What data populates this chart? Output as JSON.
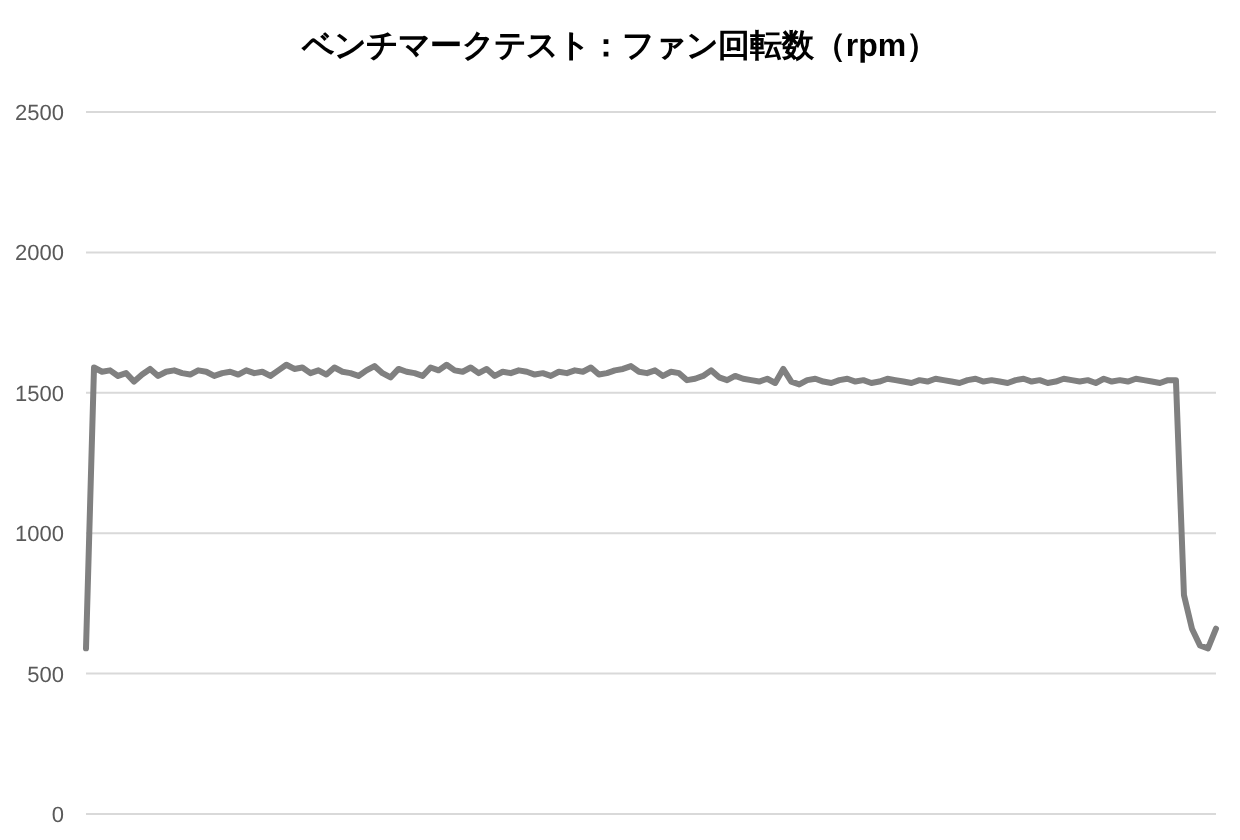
{
  "chart_data": {
    "type": "line",
    "title": "ベンチマークテスト：ファン回転数（rpm）",
    "categories": [
      null,
      null,
      null,
      null,
      null,
      null,
      null,
      null,
      null,
      null,
      null,
      null,
      null,
      null,
      null,
      null,
      null,
      null,
      null,
      null,
      null,
      null,
      null,
      null,
      null,
      null,
      null,
      null,
      null,
      null,
      null,
      null,
      null,
      null,
      null,
      null,
      null,
      null,
      null,
      null,
      null,
      null,
      null,
      null,
      null,
      null,
      null,
      null,
      null,
      null,
      null,
      null,
      null,
      null,
      null,
      null,
      null,
      null,
      null,
      null,
      null,
      null,
      null,
      null,
      null,
      null,
      null,
      null,
      null,
      null,
      null,
      null,
      null,
      null,
      null,
      null,
      null,
      null,
      null,
      null,
      null,
      null,
      null,
      null,
      null,
      null,
      null,
      null,
      null,
      null,
      null,
      null,
      null,
      null,
      null,
      null,
      null,
      null,
      null,
      null,
      null,
      null,
      null,
      null,
      null,
      null,
      null,
      null,
      null,
      null,
      null,
      null,
      null,
      null,
      null,
      null,
      null,
      null,
      null,
      null,
      null,
      null,
      null,
      null,
      null,
      null,
      null,
      null,
      null,
      null,
      null,
      null,
      null,
      null,
      null,
      null,
      null,
      null,
      null,
      null,
      null,
      null
    ],
    "series": [
      {
        "color": "#808080",
        "values": [
          590,
          1590,
          1575,
          1580,
          1560,
          1570,
          1540,
          1565,
          1585,
          1560,
          1575,
          1580,
          1570,
          1565,
          1580,
          1575,
          1560,
          1570,
          1575,
          1565,
          1580,
          1570,
          1575,
          1560,
          1580,
          1600,
          1585,
          1590,
          1570,
          1580,
          1565,
          1590,
          1575,
          1570,
          1560,
          1580,
          1595,
          1570,
          1555,
          1585,
          1575,
          1570,
          1560,
          1590,
          1580,
          1600,
          1580,
          1575,
          1590,
          1570,
          1585,
          1560,
          1575,
          1570,
          1580,
          1575,
          1565,
          1570,
          1560,
          1575,
          1570,
          1580,
          1575,
          1590,
          1565,
          1570,
          1580,
          1585,
          1595,
          1575,
          1570,
          1580,
          1560,
          1575,
          1570,
          1545,
          1550,
          1560,
          1580,
          1555,
          1545,
          1560,
          1550,
          1545,
          1540,
          1550,
          1535,
          1585,
          1540,
          1530,
          1545,
          1550,
          1540,
          1535,
          1545,
          1550,
          1540,
          1545,
          1535,
          1540,
          1550,
          1545,
          1540,
          1535,
          1545,
          1540,
          1550,
          1545,
          1540,
          1535,
          1545,
          1550,
          1540,
          1545,
          1540,
          1535,
          1545,
          1550,
          1540,
          1545,
          1535,
          1540,
          1550,
          1545,
          1540,
          1545,
          1535,
          1550,
          1540,
          1545,
          1540,
          1550,
          1545,
          1540,
          1535,
          1545,
          1545,
          780,
          660,
          600,
          590,
          660
        ]
      }
    ],
    "ylim": [
      0,
      2500
    ],
    "yticks": [
      0,
      500,
      1000,
      1500,
      2000,
      2500
    ],
    "grid": "y",
    "tick_labels": "y",
    "line_style": "solid"
  }
}
